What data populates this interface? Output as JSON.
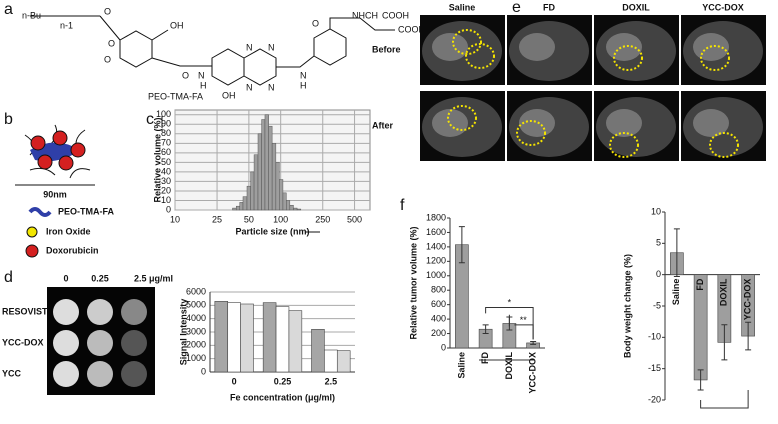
{
  "panels": {
    "a": {
      "letter": "a",
      "texts": [
        "n-Bu",
        "O",
        "n-1",
        "O",
        "O",
        "OH",
        "O",
        "N",
        "H",
        "N",
        "N",
        "N",
        "N",
        "OH",
        "N",
        "H",
        "O",
        "NHCH",
        "COOH",
        "COOH",
        "PEO-TMA-FA"
      ]
    },
    "b": {
      "letter": "b",
      "size": "90nm",
      "legend": [
        "PEO-TMA-FA",
        "Iron Oxide",
        "Doxorubicin"
      ]
    },
    "c": {
      "letter": "c"
    },
    "d": {
      "letter": "d",
      "columns": [
        "0",
        "0.25",
        "2.5 μg/ml"
      ]
    },
    "e": {
      "letter": "e",
      "columns": [
        "Saline",
        "FD",
        "DOXIL",
        "YCC-DOX"
      ],
      "rows": [
        "Before",
        "After"
      ]
    },
    "f": {
      "letter": "f"
    }
  },
  "chart_data": [
    {
      "type": "histogram",
      "y_label": "Relative volume (%)",
      "x_label": "Particle size (nm)",
      "bins": [
        35,
        38,
        41,
        44,
        48,
        52,
        56,
        61,
        66,
        71,
        77,
        83,
        90,
        97,
        105,
        113,
        122,
        132,
        143,
        155
      ],
      "counts": [
        2,
        4,
        8,
        14,
        25,
        40,
        58,
        80,
        95,
        100,
        88,
        70,
        50,
        32,
        18,
        10,
        5,
        2,
        1
      ],
      "color": "#9e9e9e",
      "xlim": [
        10,
        700
      ],
      "xticks": [
        10,
        25,
        50,
        100,
        250,
        500
      ],
      "log_x": true,
      "ylim": [
        0,
        105
      ],
      "yticks": [
        0,
        10,
        20,
        30,
        40,
        50,
        60,
        70,
        80,
        90,
        100
      ],
      "grid": true
    },
    {
      "type": "grouped_bar",
      "y_label": "Signal Intensity",
      "x_label": "Fe concentration (μg/ml)",
      "categories": [
        "0",
        "0.25",
        "2.5"
      ],
      "series": [
        {
          "name": "RESOVIST",
          "color": "#a6a6a6",
          "values": [
            5300,
            5200,
            3200
          ]
        },
        {
          "name": "YCC-DOX",
          "color": "#ffffff",
          "values": [
            5200,
            4900,
            1650
          ]
        },
        {
          "name": "YCC",
          "color": "#d9d9d9",
          "values": [
            5100,
            4600,
            1600
          ]
        }
      ],
      "ylim": [
        0,
        6000
      ],
      "yticks": [
        0,
        1000,
        2000,
        3000,
        4000,
        5000,
        6000
      ],
      "grid": true
    },
    {
      "type": "bar",
      "y_label": "Relative tumor volume (%)",
      "categories": [
        "Saline",
        "FD",
        "DOXIL",
        "YCC-DOX"
      ],
      "values": [
        1430,
        260,
        340,
        70
      ],
      "errors": [
        250,
        60,
        90,
        20
      ],
      "color": "#9e9e9e",
      "ylim": [
        0,
        1800
      ],
      "yticks": [
        0,
        200,
        400,
        600,
        800,
        1000,
        1200,
        1400,
        1600,
        1800
      ],
      "grid": false,
      "annotations": [
        "*",
        "**"
      ]
    },
    {
      "type": "bar",
      "y_label": "Body weight change (%)",
      "categories": [
        "Saline",
        "FD",
        "DOXIL",
        "YCC-DOX"
      ],
      "values": [
        3.5,
        -16.8,
        -10.8,
        -9.8
      ],
      "errors": [
        3.8,
        1.6,
        2.8,
        2.2
      ],
      "color": "#9e9e9e",
      "ylim": [
        -20,
        10
      ],
      "yticks": [
        -20,
        -15,
        -10,
        -5,
        0,
        5,
        10
      ],
      "grid": false
    }
  ]
}
